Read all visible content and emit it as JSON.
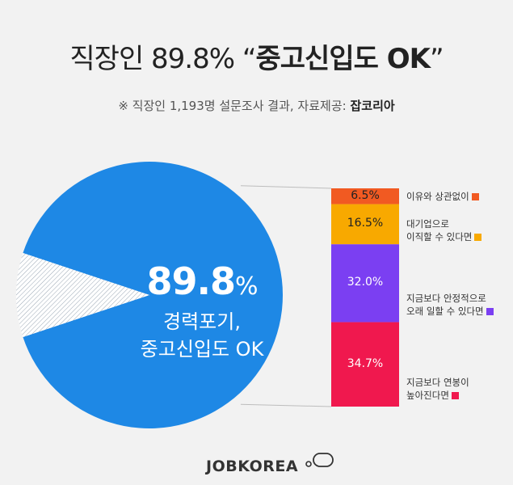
{
  "header": {
    "title_normal": "직장인 89.8% “",
    "title_bold": "중고신입도 OK",
    "title_end": "”",
    "subtitle": "※ 직장인 1,193명 설문조사 결과,  자료제공: ",
    "subtitle_source": "잡코리아"
  },
  "pie_center": {
    "value": "89.8",
    "unit": "%",
    "line1": "경력포기,",
    "line2": "중고신입도 OK"
  },
  "chart_data": {
    "type": "pie",
    "pie": {
      "slices": [
        {
          "label": "경력포기, 중고신입도 OK",
          "value": 89.8,
          "color": "#1e88e5"
        },
        {
          "value": 10.2,
          "color": "#ffffff"
        }
      ]
    },
    "bar": {
      "type": "bar",
      "stacked": true,
      "segments": [
        {
          "label_line1": "이유와 상관없이",
          "label_line2": "",
          "value": 6.5,
          "display": "6.5%",
          "color": "#f15a22"
        },
        {
          "label_line1": "대기업으로",
          "label_line2": "이직할 수 있다면",
          "value": 16.5,
          "display": "16.5%",
          "color": "#f8a900"
        },
        {
          "label_line1": "지금보다 안정적으로",
          "label_line2": "오래 일할 수 있다면",
          "value": 32.0,
          "display": "32.0%",
          "color": "#7b3ff2"
        },
        {
          "label_line1": "지금보다 연봉이",
          "label_line2": "높아진다면",
          "value": 34.7,
          "display": "34.7%",
          "color": "#f0184e"
        }
      ]
    }
  },
  "footer": {
    "logo_text": "JOBKOREA"
  }
}
